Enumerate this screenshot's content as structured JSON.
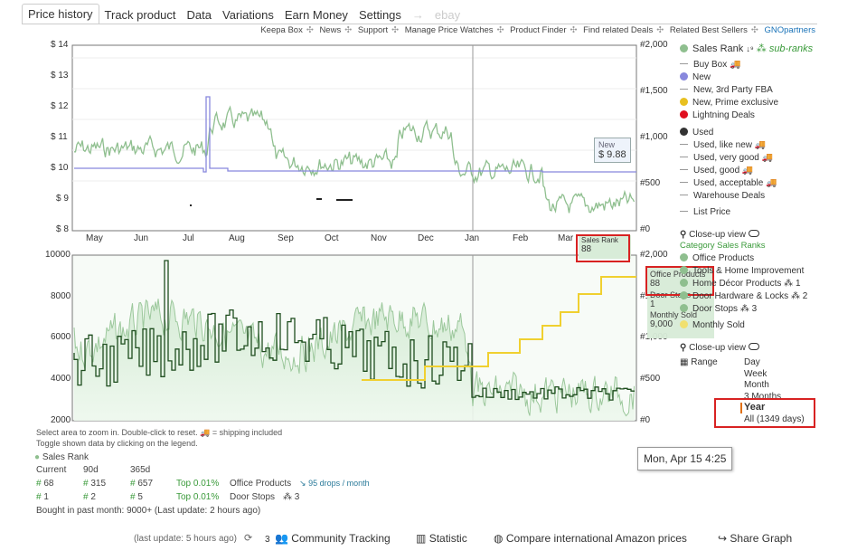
{
  "tabs": [
    "Price history",
    "Track product",
    "Data",
    "Variations",
    "Earn Money",
    "Settings"
  ],
  "tab_arrow": "→",
  "tab_ebay": "ebay",
  "links": [
    "Keepa Box",
    "News",
    "Support",
    "Manage Price Watches",
    "Product Finder",
    "Find related Deals",
    "Related Best Sellers",
    "GNOpartners"
  ],
  "link_sep": "✣",
  "top_chart": {
    "y_left": [
      "$ 14",
      "$ 13",
      "$ 12",
      "$ 11",
      "$ 10",
      "$ 9",
      "$ 8"
    ],
    "y_right": [
      "#2,000",
      "#1,500",
      "#1,000",
      "#500",
      "#0"
    ],
    "months": [
      "May",
      "Jun",
      "Jul",
      "Aug",
      "Sep",
      "Oct",
      "Nov",
      "Dec",
      "Jan",
      "Feb",
      "Mar"
    ],
    "new_tip_label": "New",
    "new_tip_value": "$ 9.88",
    "sales_rank_tip_label": "Sales Rank",
    "sales_rank_tip_value": "88"
  },
  "bottom_chart": {
    "y_left": [
      "10000",
      "8000",
      "6000",
      "4000",
      "2000"
    ],
    "y_right": [
      "#2,000",
      "#1,500",
      "#1,000",
      "#500",
      "#0"
    ],
    "tip_office_label": "Office Products",
    "tip_office_value": "88",
    "tip_doorstops_label": "Door Stops",
    "tip_doorstops_value": "1",
    "tip_monthly_label": "Monthly Sold",
    "tip_monthly_value": "9,000"
  },
  "legend_top": [
    {
      "label": "Sales Rank",
      "type": "dot",
      "color": "#8fbf8f",
      "extra": "sub-ranks"
    },
    {
      "label": "Buy Box 🚚",
      "type": "dash"
    },
    {
      "label": "New",
      "type": "dot",
      "color": "#8888dd"
    },
    {
      "label": "New, 3rd Party FBA",
      "type": "dash"
    },
    {
      "label": "New, Prime exclusive",
      "type": "dot",
      "color": "#e8c020"
    },
    {
      "label": "Lightning Deals",
      "type": "dot",
      "color": "#e01020"
    },
    {
      "label": "Used",
      "type": "dot",
      "color": "#333333"
    },
    {
      "label": "Used, like new 🚚",
      "type": "dash"
    },
    {
      "label": "Used, very good 🚚",
      "type": "dash"
    },
    {
      "label": "Used, good 🚚",
      "type": "dash"
    },
    {
      "label": "Used, acceptable 🚚",
      "type": "dash"
    },
    {
      "label": "Warehouse Deals",
      "type": "dash"
    },
    {
      "label": "List Price",
      "type": "dash"
    }
  ],
  "closeup_label": "Close-up view",
  "category_title": "Category Sales Ranks",
  "legend_bottom": [
    {
      "label": "Office Products",
      "color": "#8fbf8f"
    },
    {
      "label": "Tools & Home Improvement",
      "color": "#8fbf8f"
    },
    {
      "label": "Home Décor Products",
      "color": "#8fbf8f",
      "rank": "1"
    },
    {
      "label": "Door Hardware & Locks",
      "color": "#8fbf8f",
      "rank": "2"
    },
    {
      "label": "Door Stops",
      "color": "#8fbf8f",
      "rank": "3"
    },
    {
      "label": "Monthly Sold",
      "color": "#f0e070"
    }
  ],
  "closeup_label_2": "Close-up view",
  "range_label": "Range",
  "range_options": [
    "Day",
    "Week",
    "Month",
    "3 Months",
    "Year",
    "All (1349 days)"
  ],
  "range_selected": "Year",
  "date_tip": "Mon, Apr 15 4:25",
  "hints": [
    "Select area to zoom in. Double-click to reset.",
    "= shipping included",
    "Toggle shown data by clicking on the legend."
  ],
  "stats": {
    "title": "Sales Rank",
    "headers": [
      "Current",
      "90d",
      "365d"
    ],
    "row1": {
      "cur": "68",
      "d90": "315",
      "d365": "657",
      "top": "Top 0.01%",
      "cat": "Office Products",
      "drops": "95 drops / month"
    },
    "row2": {
      "cur": "1",
      "d90": "2",
      "d365": "5",
      "top": "Top 0.01%",
      "cat": "Door Stops",
      "rank": "3"
    },
    "bought": "Bought in past month: 9000+ (Last update: 2 hours ago)"
  },
  "footer": {
    "last_update": "(last update: 5 hours ago)",
    "count": "3",
    "community": "Community Tracking",
    "statistic": "Statistic",
    "compare": "Compare international Amazon prices",
    "share": "Share Graph"
  },
  "colors": {
    "sales_rank": "#8fbf8f",
    "new": "#8888dd",
    "dark_green": "#1e4d1e",
    "monthly": "#f0d030",
    "highlight": "#d82222"
  }
}
